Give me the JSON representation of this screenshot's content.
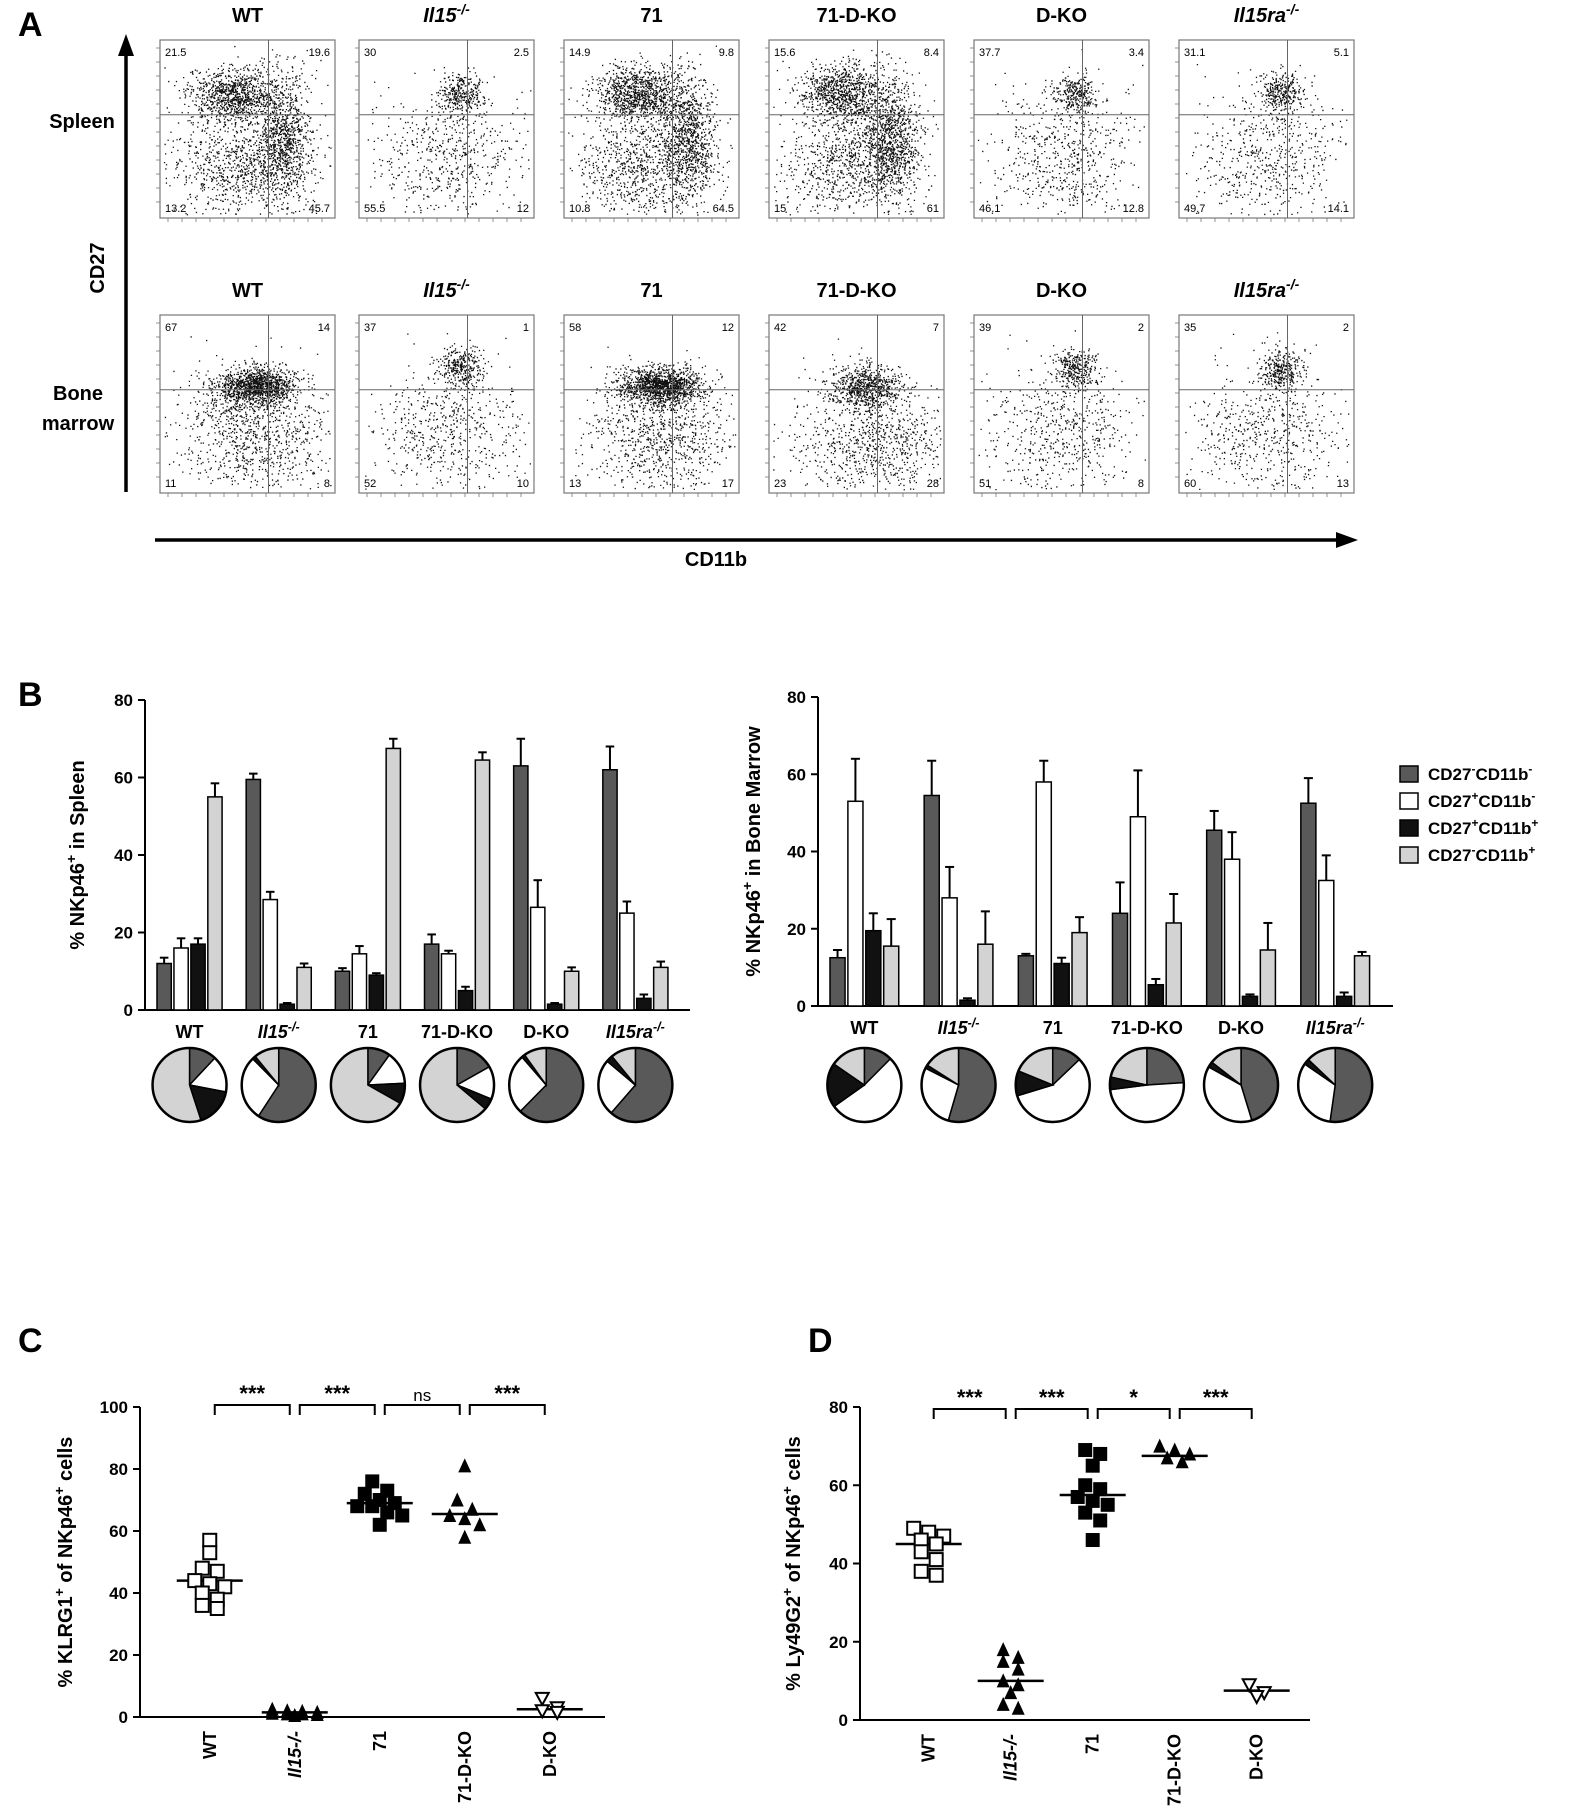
{
  "panel_letters": {
    "a": "A",
    "b": "B",
    "c": "C",
    "d": "D"
  },
  "panel_a": {
    "x_axis_label": "CD11b",
    "y_axis_label": "CD27",
    "row_labels": [
      [
        "Spleen"
      ],
      [
        "Bone",
        "marrow"
      ]
    ],
    "rows": [
      {
        "tissue": "Spleen",
        "plots": [
          {
            "title": "WT",
            "italic": false,
            "superscript": "",
            "quadrants": [
              "21.5",
              "19.6",
              "13.2",
              "45.7"
            ],
            "cluster": "high"
          },
          {
            "title": "Il15",
            "italic": true,
            "superscript": "-/-",
            "quadrants": [
              "30",
              "2.5",
              "55.5",
              "12"
            ],
            "cluster": "low"
          },
          {
            "title": "71",
            "italic": false,
            "superscript": "",
            "quadrants": [
              "14.9",
              "9.8",
              "10.8",
              "64.5"
            ],
            "cluster": "high"
          },
          {
            "title": "71-D-KO",
            "italic": false,
            "superscript": "",
            "quadrants": [
              "15.6",
              "8.4",
              "15",
              "61"
            ],
            "cluster": "high"
          },
          {
            "title": "D-KO",
            "italic": false,
            "superscript": "",
            "quadrants": [
              "37.7",
              "3.4",
              "46.1",
              "12.8"
            ],
            "cluster": "low"
          },
          {
            "title": "Il15ra",
            "italic": true,
            "superscript": "-/-",
            "quadrants": [
              "31.1",
              "5.1",
              "49.7",
              "14.1"
            ],
            "cluster": "low"
          }
        ]
      },
      {
        "tissue": "Bone marrow",
        "plots": [
          {
            "title": "WT",
            "italic": false,
            "superscript": "",
            "quadrants": [
              "67",
              "14",
              "11",
              "8"
            ],
            "cluster": "bm_high"
          },
          {
            "title": "Il15",
            "italic": true,
            "superscript": "-/-",
            "quadrants": [
              "37",
              "1",
              "52",
              "10"
            ],
            "cluster": "low"
          },
          {
            "title": "71",
            "italic": false,
            "superscript": "",
            "quadrants": [
              "58",
              "12",
              "13",
              "17"
            ],
            "cluster": "bm_high"
          },
          {
            "title": "71-D-KO",
            "italic": false,
            "superscript": "",
            "quadrants": [
              "42",
              "7",
              "23",
              "28"
            ],
            "cluster": "bm_mid"
          },
          {
            "title": "D-KO",
            "italic": false,
            "superscript": "",
            "quadrants": [
              "39",
              "2",
              "51",
              "8"
            ],
            "cluster": "low"
          },
          {
            "title": "Il15ra",
            "italic": true,
            "superscript": "-/-",
            "quadrants": [
              "35",
              "2",
              "60",
              "13"
            ],
            "cluster": "low"
          }
        ]
      }
    ]
  },
  "legend": {
    "entries": [
      {
        "base": "CD27",
        "sup1": "-",
        "mid": "CD11b",
        "sup2": "-",
        "color": "#595959"
      },
      {
        "base": "CD27",
        "sup1": "+",
        "mid": "CD11b",
        "sup2": "-",
        "color": "#ffffff"
      },
      {
        "base": "CD27",
        "sup1": "+",
        "mid": "CD11b",
        "sup2": "+",
        "color": "#111111"
      },
      {
        "base": "CD27",
        "sup1": "-",
        "mid": "CD11b",
        "sup2": "+",
        "color": "#d3d3d3"
      }
    ]
  },
  "chart_data": [
    {
      "id": "B-spleen",
      "type": "bar",
      "ylabel": "% NKp46+ in Spleen",
      "ylim": [
        0,
        80
      ],
      "yticks": [
        "0",
        "20",
        "40",
        "60",
        "80"
      ],
      "categories": [
        "WT",
        "Il15-/-",
        "71",
        "71-D-KO",
        "D-KO",
        "Il15ra-/-"
      ],
      "series": [
        {
          "name": "CD27-CD11b-",
          "color": "#595959",
          "values": [
            12,
            59.5,
            10,
            17,
            63,
            62
          ],
          "errors": [
            1.5,
            1.5,
            0.8,
            2.5,
            7,
            6
          ]
        },
        {
          "name": "CD27+CD11b-",
          "color": "#ffffff",
          "values": [
            16,
            28.5,
            14.5,
            14.5,
            26.5,
            25
          ],
          "errors": [
            2.5,
            2,
            2,
            0.8,
            7,
            3
          ]
        },
        {
          "name": "CD27+CD11b+",
          "color": "#111111",
          "values": [
            17,
            1.5,
            9,
            5,
            1.5,
            3
          ],
          "errors": [
            1.5,
            0.3,
            0.5,
            1,
            0.3,
            1
          ]
        },
        {
          "name": "CD27-CD11b+",
          "color": "#d3d3d3",
          "values": [
            55,
            11,
            67.5,
            64.5,
            10,
            11
          ],
          "errors": [
            3.5,
            1,
            2.5,
            2,
            1,
            1.5
          ]
        }
      ],
      "pies": [
        [
          12,
          16,
          17,
          55
        ],
        [
          59.5,
          28.5,
          1.5,
          11
        ],
        [
          10,
          14.5,
          9,
          67.5
        ],
        [
          17,
          14.5,
          5,
          64.5
        ],
        [
          63,
          26.5,
          1.5,
          10
        ],
        [
          62,
          25,
          3,
          11
        ]
      ]
    },
    {
      "id": "B-bone-marrow",
      "type": "bar",
      "ylabel": "% NKp46+ in Bone Marrow",
      "ylim": [
        0,
        80
      ],
      "yticks": [
        "0",
        "20",
        "40",
        "60",
        "80"
      ],
      "categories": [
        "WT",
        "Il15-/-",
        "71",
        "71-D-KO",
        "D-KO",
        "Il15ra-/-"
      ],
      "series": [
        {
          "name": "CD27-CD11b-",
          "color": "#595959",
          "values": [
            12.5,
            54.5,
            13,
            24,
            45.5,
            52.5
          ],
          "errors": [
            2,
            9,
            0.5,
            8,
            5,
            6.5
          ]
        },
        {
          "name": "CD27+CD11b-",
          "color": "#ffffff",
          "values": [
            53,
            28,
            58,
            49,
            38,
            32.5
          ],
          "errors": [
            11,
            8,
            5.5,
            12,
            7,
            6.5
          ]
        },
        {
          "name": "CD27+CD11b+",
          "color": "#111111",
          "values": [
            19.5,
            1.5,
            11,
            5.5,
            2.5,
            2.5
          ],
          "errors": [
            4.5,
            0.5,
            1.5,
            1.5,
            0.5,
            1
          ]
        },
        {
          "name": "CD27-CD11b+",
          "color": "#d3d3d3",
          "values": [
            15.5,
            16,
            19,
            21.5,
            14.5,
            13
          ],
          "errors": [
            7,
            8.5,
            4,
            7.5,
            7,
            1
          ]
        }
      ],
      "pies": [
        [
          12.5,
          53,
          19.5,
          15.5
        ],
        [
          54.5,
          28,
          1.5,
          16
        ],
        [
          13,
          58,
          11,
          19
        ],
        [
          24,
          49,
          5.5,
          21.5
        ],
        [
          45.5,
          38,
          2.5,
          14.5
        ],
        [
          52.5,
          32.5,
          2.5,
          13
        ]
      ]
    },
    {
      "id": "C",
      "type": "scatter",
      "ylabel": "% KLRG1+ of NKp46+ cells",
      "ylim": [
        0,
        100
      ],
      "yticks": [
        "0",
        "20",
        "40",
        "60",
        "80",
        "100"
      ],
      "categories": [
        "WT",
        "Il15-/-",
        "71",
        "71-D-KO",
        "D-KO"
      ],
      "groups": [
        {
          "marker": "square-open",
          "points": [
            57,
            53,
            48,
            47,
            44,
            43,
            42,
            40,
            38,
            36,
            35
          ],
          "mean": 44
        },
        {
          "marker": "triangle-filled",
          "points": [
            2.5,
            2,
            1.8,
            1.5,
            1.2,
            1,
            1,
            0.8,
            0.5
          ],
          "mean": 1.5
        },
        {
          "marker": "square-filled",
          "points": [
            76,
            73,
            72,
            70,
            69,
            68,
            68,
            66,
            65,
            62
          ],
          "mean": 69
        },
        {
          "marker": "triangle-filled",
          "points": [
            81,
            70,
            67,
            65,
            64,
            62,
            58
          ],
          "mean": 65.5
        },
        {
          "marker": "triangle-open",
          "points": [
            6,
            3,
            2,
            1.5
          ],
          "mean": 2.5
        }
      ],
      "significance": [
        "***",
        "***",
        "ns",
        "***"
      ]
    },
    {
      "id": "D",
      "type": "scatter",
      "ylabel": "% Ly49G2+ of NKp46+ cells",
      "ylim": [
        0,
        80
      ],
      "yticks": [
        "0",
        "20",
        "40",
        "60",
        "80"
      ],
      "categories": [
        "WT",
        "Il15-/-",
        "71",
        "71-D-KO",
        "D-KO"
      ],
      "groups": [
        {
          "marker": "square-open",
          "points": [
            49,
            48,
            47,
            46,
            45,
            43,
            41,
            38,
            37
          ],
          "mean": 45
        },
        {
          "marker": "triangle-filled",
          "points": [
            18,
            16,
            15,
            13,
            10,
            9,
            7,
            4,
            3
          ],
          "mean": 10
        },
        {
          "marker": "square-filled",
          "points": [
            69,
            68,
            65,
            60,
            59,
            57,
            56,
            55,
            53,
            51,
            46
          ],
          "mean": 57.5
        },
        {
          "marker": "triangle-filled",
          "points": [
            70,
            69,
            68,
            67,
            66
          ],
          "mean": 67.5
        },
        {
          "marker": "triangle-open",
          "points": [
            9,
            7,
            6
          ],
          "mean": 7.5
        }
      ],
      "significance": [
        "***",
        "***",
        "*",
        "***"
      ]
    }
  ],
  "category_labels": [
    {
      "base": "WT",
      "italic": false,
      "sup": ""
    },
    {
      "base": "Il15",
      "italic": true,
      "sup": "-/-"
    },
    {
      "base": "71",
      "italic": false,
      "sup": ""
    },
    {
      "base": "71-D-KO",
      "italic": false,
      "sup": ""
    },
    {
      "base": "D-KO",
      "italic": false,
      "sup": ""
    },
    {
      "base": "Il15ra",
      "italic": true,
      "sup": "-/-"
    }
  ],
  "ylabel_parts": {
    "b_spleen": {
      "pre": "% NKp46",
      "sup": "+",
      "post": " in Spleen"
    },
    "b_bm": {
      "pre": "% NKp46",
      "sup": "+",
      "post": " in Bone Marrow"
    },
    "c": {
      "pre": "% KLRG1",
      "sup": "+",
      "mid": " of NKp46",
      "sup2": "+",
      "post": " cells"
    },
    "d": {
      "pre": "% Ly49G2",
      "sup": "+",
      "mid": " of NKp46",
      "sup2": "+",
      "post": " cells"
    }
  }
}
